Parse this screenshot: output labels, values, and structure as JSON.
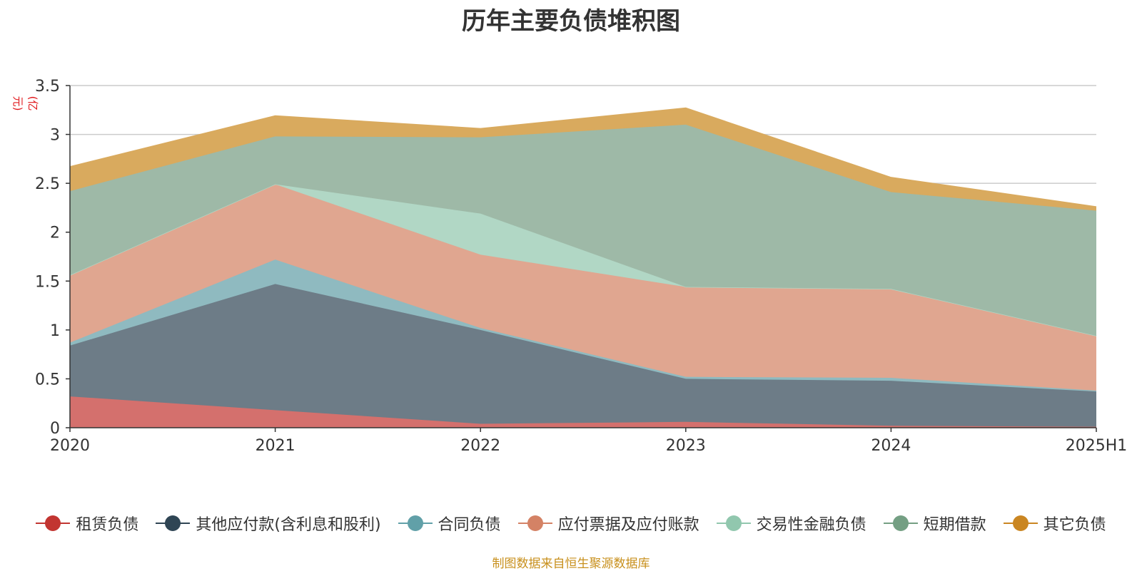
{
  "title": "历年主要负债堆积图",
  "unit_label": "(亿元)",
  "source_note": "制图数据来自恒生聚源数据库",
  "colors": {
    "unit": "#e0161a",
    "source": "#c8901d",
    "axis": "#333333",
    "grid": "#cccccc"
  },
  "chart_data": {
    "type": "area",
    "stacked": true,
    "categories": [
      "2020",
      "2021",
      "2022",
      "2023",
      "2024",
      "2025H1"
    ],
    "ylim": [
      0,
      3.5
    ],
    "yticks": [
      0,
      0.5,
      1,
      1.5,
      2,
      2.5,
      3,
      3.5
    ],
    "ytick_labels": [
      "0",
      "0.5",
      "1",
      "1.5",
      "2",
      "2.5",
      "3",
      "3.5"
    ],
    "grid": true,
    "legend_position": "bottom",
    "series": [
      {
        "name": "租赁负债",
        "color": "#c23531",
        "fill": "#d4706d",
        "values": [
          0.32,
          0.18,
          0.04,
          0.06,
          0.02,
          0.01
        ]
      },
      {
        "name": "其他应付款(含利息和股利)",
        "color": "#2f4554",
        "fill": "#6d7c87",
        "values": [
          0.52,
          1.29,
          0.96,
          0.44,
          0.46,
          0.36
        ]
      },
      {
        "name": "合同负债",
        "color": "#61a0a8",
        "fill": "#8fbac0",
        "values": [
          0.03,
          0.25,
          0.02,
          0.02,
          0.03,
          0.01
        ]
      },
      {
        "name": "应付票据及应付账款",
        "color": "#d48265",
        "fill": "#e0a690",
        "values": [
          0.69,
          0.77,
          0.75,
          0.92,
          0.91,
          0.56
        ]
      },
      {
        "name": "交易性金融负债",
        "color": "#91c7ae",
        "fill": "#b1d7c5",
        "values": [
          0.0,
          0.0,
          0.42,
          0.0,
          0.0,
          0.0
        ]
      },
      {
        "name": "短期借款",
        "color": "#749f83",
        "fill": "#9eb9a7",
        "values": [
          0.86,
          0.49,
          0.78,
          1.66,
          0.99,
          1.28
        ]
      },
      {
        "name": "其它负债",
        "color": "#ca8622",
        "fill": "#d9aa5e",
        "values": [
          0.25,
          0.21,
          0.09,
          0.17,
          0.15,
          0.04
        ]
      }
    ]
  }
}
